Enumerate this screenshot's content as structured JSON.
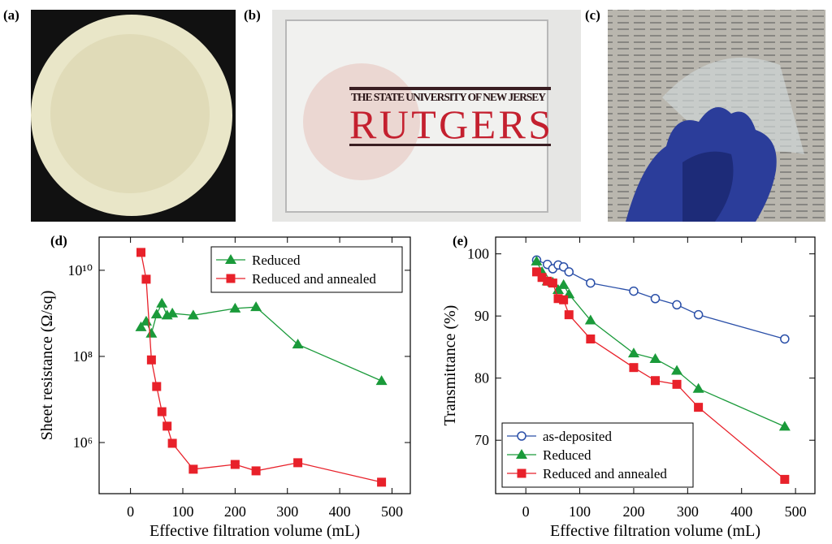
{
  "panels": [
    {
      "label": "(a)"
    },
    {
      "label": "(b)",
      "texts": [
        "THE STATE UNIVERSITY OF NEW JERSEY",
        "RUTGERS"
      ]
    },
    {
      "label": "(c)"
    }
  ],
  "chart_data": [
    {
      "type": "line",
      "panel_label": "(d)",
      "y_label": "Sheet resistance (Ω/sq)",
      "x_label": "Effective filtration volume (mL)",
      "yscale": "log",
      "xlim": [
        -60,
        535
      ],
      "ylim": [
        65000,
        59000000000
      ],
      "xticks": [
        0,
        100,
        200,
        300,
        400,
        500
      ],
      "yticks": [
        {
          "value": 1000000,
          "label": "10⁶"
        },
        {
          "value": 100000000,
          "label": "10⁸"
        },
        {
          "value": 10000000000,
          "label": "10¹⁰"
        }
      ],
      "legend": "upper right",
      "series": [
        {
          "name": "Reduced",
          "color": "#1a9a3a",
          "marker": "triangle",
          "x": [
            20,
            30,
            40,
            50,
            60,
            70,
            80,
            120,
            200,
            240,
            320,
            480
          ],
          "values": [
            480000000,
            650000000,
            340000000,
            950000000,
            1700000000,
            900000000,
            1000000000,
            900000000,
            1300000000,
            1400000000,
            190000000,
            27000000
          ]
        },
        {
          "name": "Reduced and annealed",
          "color": "#e8212a",
          "marker": "square",
          "x": [
            20,
            30,
            40,
            50,
            60,
            70,
            80,
            120,
            200,
            240,
            320,
            480
          ],
          "values": [
            26000000000,
            6200000000,
            83000000,
            20000000,
            5200000,
            2400000,
            960000,
            240000,
            310000,
            220000,
            340000,
            120000
          ]
        }
      ]
    },
    {
      "type": "line",
      "panel_label": "(e)",
      "y_label": "Transmittance (%)",
      "x_label": "Effective filtration volume (mL)",
      "xlim": [
        -56,
        536
      ],
      "ylim": [
        61.4,
        102.7
      ],
      "xticks": [
        0,
        100,
        200,
        300,
        400,
        500
      ],
      "yticks": [
        70,
        80,
        90,
        100
      ],
      "legend": "lower left",
      "series": [
        {
          "name": "as-deposited",
          "color": "#2a4fa8",
          "marker": "circle-open",
          "x": [
            20,
            40,
            50,
            60,
            70,
            80,
            120,
            200,
            240,
            280,
            320,
            480
          ],
          "values": [
            99.0,
            98.3,
            97.6,
            98.2,
            97.9,
            97.1,
            95.3,
            94.0,
            92.8,
            91.8,
            90.2,
            86.3
          ]
        },
        {
          "name": "Reduced",
          "color": "#1a9a3a",
          "marker": "triangle",
          "x": [
            20,
            30,
            40,
            50,
            60,
            70,
            80,
            120,
            200,
            240,
            280,
            320,
            480
          ],
          "values": [
            98.8,
            97.1,
            95.6,
            95.4,
            94.2,
            95.0,
            93.5,
            89.3,
            84.0,
            83.1,
            81.2,
            78.3,
            72.2
          ]
        },
        {
          "name": "Reduced and annealed",
          "color": "#e8212a",
          "marker": "square",
          "x": [
            20,
            30,
            40,
            50,
            60,
            70,
            80,
            120,
            200,
            240,
            280,
            320,
            480
          ],
          "values": [
            97.1,
            96.2,
            95.6,
            95.3,
            92.8,
            92.6,
            90.2,
            86.3,
            81.7,
            79.6,
            79.0,
            75.3,
            63.7
          ]
        }
      ]
    }
  ]
}
